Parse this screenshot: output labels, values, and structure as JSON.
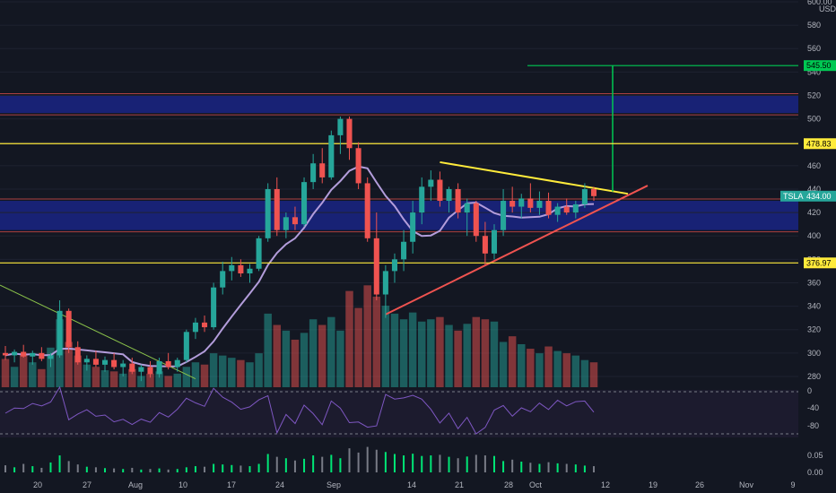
{
  "chart_data": {
    "type": "candlestick",
    "symbol": "TSLA",
    "currency": "USD",
    "ylim": [
      270,
      600
    ],
    "y_ticks": [
      280,
      300,
      320,
      340,
      360,
      380,
      400,
      420,
      440,
      460,
      480,
      500,
      520,
      540,
      560,
      580,
      "600.00"
    ],
    "x_ticks": [
      "20",
      "27",
      "Aug",
      "10",
      "17",
      "24",
      "Sep",
      "14",
      "21",
      "28",
      "Oct",
      "12",
      "19",
      "26",
      "Nov",
      "9"
    ],
    "price_labels": [
      {
        "label": "545.50",
        "value": 545.5,
        "color": "#00c853"
      },
      {
        "label": "478.83",
        "value": 478.83,
        "color": "#ffeb3b"
      },
      {
        "label": "376.97",
        "value": 376.97,
        "color": "#ffeb3b"
      }
    ],
    "last_price": {
      "symbol": "TSLA",
      "value": 434.0,
      "label": "434.00"
    },
    "zones": [
      {
        "low": 505,
        "high": 520,
        "color": "#1a237e"
      },
      {
        "low": 405,
        "high": 430,
        "color": "#1a237e"
      }
    ],
    "levels": [
      {
        "value": 478.83,
        "color": "#ffeb3b"
      },
      {
        "value": 376.97,
        "color": "#ffeb3b"
      },
      {
        "value": 545.5,
        "color": "#00c853"
      }
    ],
    "candles": [
      {
        "o": 300,
        "h": 306,
        "l": 294,
        "c": 298
      },
      {
        "o": 298,
        "h": 303,
        "l": 292,
        "c": 301
      },
      {
        "o": 301,
        "h": 307,
        "l": 296,
        "c": 297
      },
      {
        "o": 297,
        "h": 302,
        "l": 290,
        "c": 300
      },
      {
        "o": 300,
        "h": 305,
        "l": 293,
        "c": 295
      },
      {
        "o": 295,
        "h": 300,
        "l": 288,
        "c": 298
      },
      {
        "o": 298,
        "h": 345,
        "l": 296,
        "c": 336
      },
      {
        "o": 336,
        "h": 338,
        "l": 300,
        "c": 305
      },
      {
        "o": 305,
        "h": 310,
        "l": 290,
        "c": 292
      },
      {
        "o": 292,
        "h": 298,
        "l": 285,
        "c": 295
      },
      {
        "o": 295,
        "h": 302,
        "l": 288,
        "c": 290
      },
      {
        "o": 290,
        "h": 297,
        "l": 284,
        "c": 294
      },
      {
        "o": 294,
        "h": 300,
        "l": 286,
        "c": 288
      },
      {
        "o": 288,
        "h": 294,
        "l": 280,
        "c": 291
      },
      {
        "o": 291,
        "h": 296,
        "l": 282,
        "c": 284
      },
      {
        "o": 284,
        "h": 290,
        "l": 276,
        "c": 288
      },
      {
        "o": 288,
        "h": 293,
        "l": 279,
        "c": 282
      },
      {
        "o": 282,
        "h": 296,
        "l": 279,
        "c": 293
      },
      {
        "o": 293,
        "h": 300,
        "l": 286,
        "c": 288
      },
      {
        "o": 288,
        "h": 296,
        "l": 284,
        "c": 294
      },
      {
        "o": 294,
        "h": 320,
        "l": 292,
        "c": 318
      },
      {
        "o": 318,
        "h": 330,
        "l": 312,
        "c": 326
      },
      {
        "o": 326,
        "h": 332,
        "l": 318,
        "c": 322
      },
      {
        "o": 322,
        "h": 360,
        "l": 320,
        "c": 356
      },
      {
        "o": 356,
        "h": 378,
        "l": 350,
        "c": 370
      },
      {
        "o": 370,
        "h": 382,
        "l": 362,
        "c": 375
      },
      {
        "o": 375,
        "h": 380,
        "l": 365,
        "c": 368
      },
      {
        "o": 368,
        "h": 376,
        "l": 360,
        "c": 372
      },
      {
        "o": 372,
        "h": 400,
        "l": 370,
        "c": 398
      },
      {
        "o": 398,
        "h": 445,
        "l": 395,
        "c": 440
      },
      {
        "o": 440,
        "h": 450,
        "l": 400,
        "c": 405
      },
      {
        "o": 405,
        "h": 420,
        "l": 398,
        "c": 416
      },
      {
        "o": 416,
        "h": 425,
        "l": 405,
        "c": 410
      },
      {
        "o": 410,
        "h": 450,
        "l": 408,
        "c": 446
      },
      {
        "o": 446,
        "h": 470,
        "l": 440,
        "c": 462
      },
      {
        "o": 462,
        "h": 475,
        "l": 445,
        "c": 450
      },
      {
        "o": 450,
        "h": 490,
        "l": 448,
        "c": 486
      },
      {
        "o": 486,
        "h": 502,
        "l": 470,
        "c": 500
      },
      {
        "o": 500,
        "h": 502,
        "l": 465,
        "c": 475
      },
      {
        "o": 475,
        "h": 480,
        "l": 440,
        "c": 445
      },
      {
        "o": 445,
        "h": 450,
        "l": 395,
        "c": 398
      },
      {
        "o": 398,
        "h": 420,
        "l": 345,
        "c": 350
      },
      {
        "o": 350,
        "h": 375,
        "l": 330,
        "c": 370
      },
      {
        "o": 370,
        "h": 385,
        "l": 360,
        "c": 380
      },
      {
        "o": 380,
        "h": 405,
        "l": 370,
        "c": 395
      },
      {
        "o": 395,
        "h": 430,
        "l": 385,
        "c": 420
      },
      {
        "o": 420,
        "h": 450,
        "l": 410,
        "c": 442
      },
      {
        "o": 442,
        "h": 456,
        "l": 430,
        "c": 448
      },
      {
        "o": 448,
        "h": 455,
        "l": 425,
        "c": 430
      },
      {
        "o": 430,
        "h": 442,
        "l": 420,
        "c": 440
      },
      {
        "o": 440,
        "h": 445,
        "l": 415,
        "c": 420
      },
      {
        "o": 420,
        "h": 432,
        "l": 400,
        "c": 428
      },
      {
        "o": 428,
        "h": 430,
        "l": 395,
        "c": 400
      },
      {
        "o": 400,
        "h": 412,
        "l": 375,
        "c": 385
      },
      {
        "o": 385,
        "h": 410,
        "l": 380,
        "c": 405
      },
      {
        "o": 405,
        "h": 440,
        "l": 400,
        "c": 430
      },
      {
        "o": 430,
        "h": 442,
        "l": 420,
        "c": 425
      },
      {
        "o": 425,
        "h": 436,
        "l": 415,
        "c": 432
      },
      {
        "o": 432,
        "h": 445,
        "l": 420,
        "c": 424
      },
      {
        "o": 424,
        "h": 438,
        "l": 418,
        "c": 430
      },
      {
        "o": 430,
        "h": 437,
        "l": 415,
        "c": 418
      },
      {
        "o": 418,
        "h": 428,
        "l": 412,
        "c": 425
      },
      {
        "o": 425,
        "h": 432,
        "l": 418,
        "c": 420
      },
      {
        "o": 420,
        "h": 430,
        "l": 415,
        "c": 427
      },
      {
        "o": 427,
        "h": 445,
        "l": 424,
        "c": 440
      },
      {
        "o": 440,
        "h": 442,
        "l": 430,
        "c": 434
      }
    ],
    "volume": [
      25,
      18,
      30,
      22,
      16,
      35,
      60,
      40,
      28,
      20,
      18,
      15,
      14,
      12,
      16,
      10,
      12,
      14,
      10,
      12,
      18,
      22,
      20,
      30,
      28,
      26,
      24,
      22,
      30,
      65,
      55,
      50,
      42,
      48,
      60,
      55,
      62,
      50,
      85,
      70,
      90,
      80,
      72,
      65,
      60,
      66,
      58,
      60,
      62,
      55,
      50,
      56,
      62,
      60,
      58,
      40,
      45,
      38,
      34,
      30,
      36,
      32,
      30,
      28,
      24,
      22
    ]
  }
}
